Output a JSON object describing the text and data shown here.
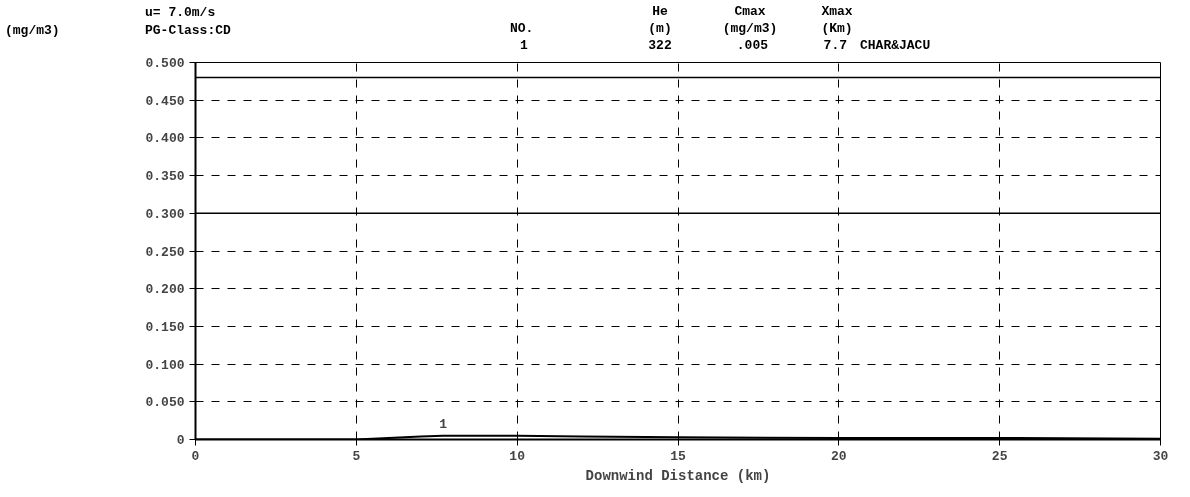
{
  "chart_data": {
    "type": "line",
    "xlabel": "Downwind Distance (km)",
    "annotations": [
      "(mg/m3)",
      "u= 7.0m/s",
      "PG-Class:CD",
      "He",
      "Cmax",
      "Xmax",
      "NO.",
      "(m)",
      "(mg/m3)",
      "(Km)",
      "1",
      "322",
      ".005",
      "7.7",
      "CHAR&JACU"
    ],
    "xlim": [
      0,
      30
    ],
    "ylim": [
      0,
      0.5
    ],
    "xticks": [
      0,
      5,
      10,
      15,
      20,
      25,
      30
    ],
    "yticks": [
      0,
      {
        "value": 0.05,
        "label": "0.050"
      },
      {
        "value": 0.1,
        "label": "0.100"
      },
      {
        "value": 0.15,
        "label": "0.150"
      },
      {
        "value": 0.2,
        "label": "0.200"
      },
      {
        "value": 0.25,
        "label": "0.250"
      },
      {
        "value": 0.3,
        "label": "0.300"
      },
      {
        "value": 0.35,
        "label": "0.350"
      },
      {
        "value": 0.4,
        "label": "0.400"
      },
      {
        "value": 0.45,
        "label": "0.450"
      },
      {
        "value": 0.5,
        "label": "0.500"
      }
    ],
    "x": [
      0,
      4,
      5,
      5.5,
      6,
      6.5,
      7,
      7.7,
      8.5,
      10,
      12,
      15,
      20,
      25,
      30
    ],
    "series": [
      {
        "name": "1",
        "color": "#000000",
        "values": [
          0,
          0,
          0,
          0.001,
          0.002,
          0.003,
          0.004,
          0.005,
          0.005,
          0.005,
          0.004,
          0.003,
          0.002,
          0.002,
          0.001
        ]
      }
    ],
    "ref_lines": [
      {
        "axis": "y",
        "value": 0.48,
        "color": "#000000"
      },
      {
        "axis": "y",
        "value": 0.3,
        "color": "#000000"
      }
    ],
    "grid": true,
    "line_style": "solid",
    "marker": "none"
  }
}
